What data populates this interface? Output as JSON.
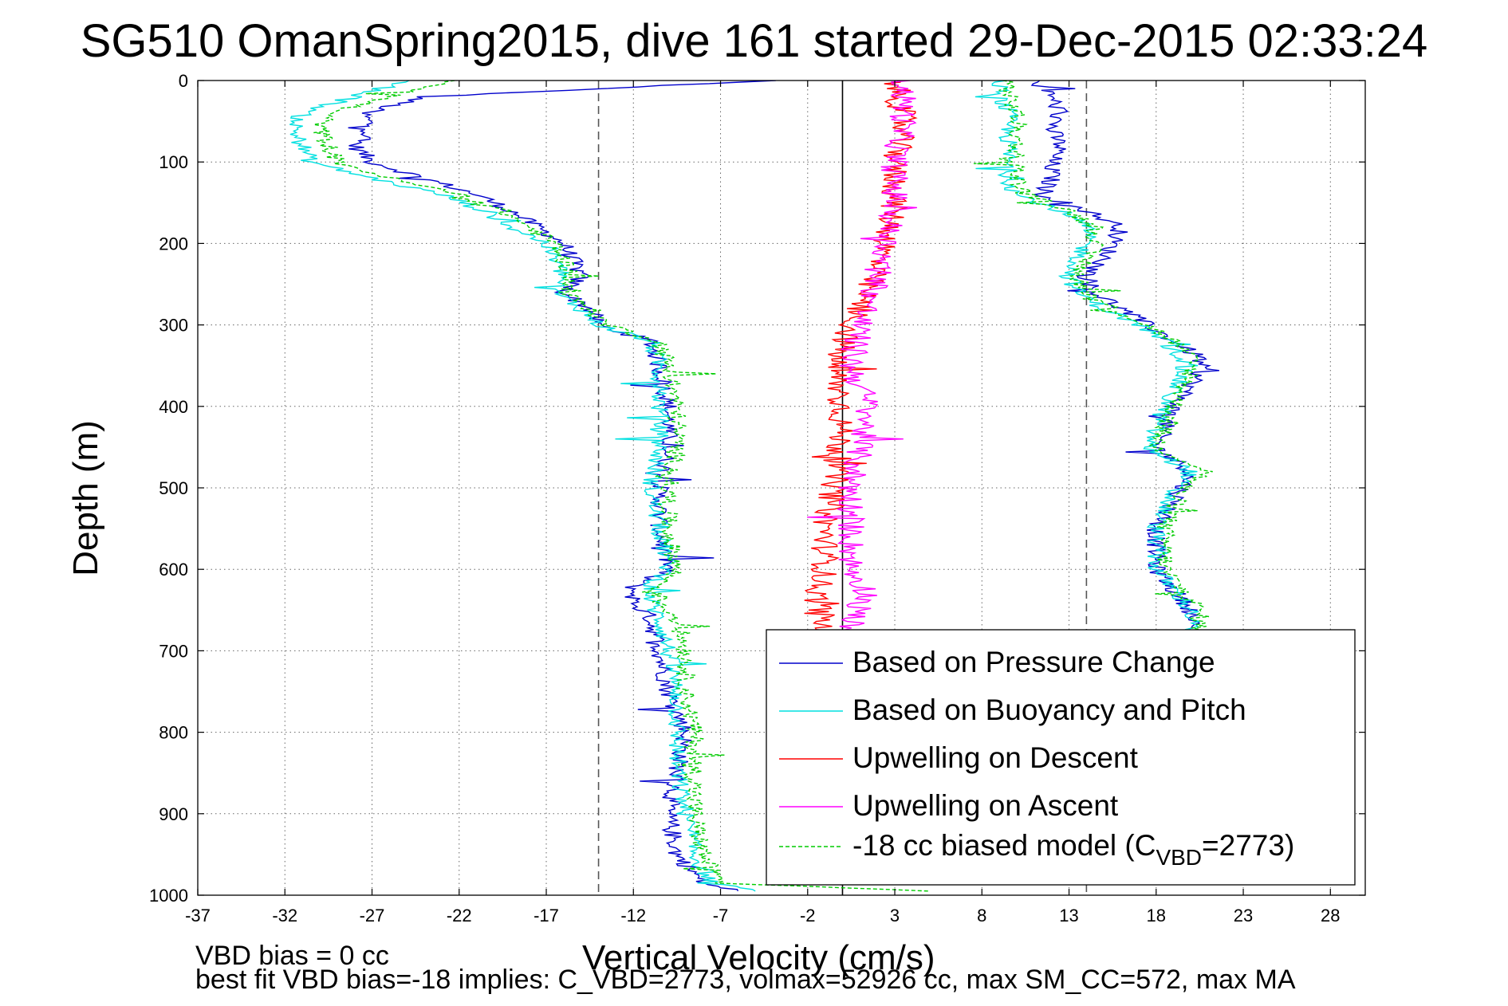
{
  "figure": {
    "title": "SG510 OmanSpring2015, dive 161 started 29-Dec-2015 02:33:24",
    "notes": [
      "VBD bias = 0 cc",
      "best fit VBD bias=-18 implies: C_VBD=2773, volmax=52926 cc, max SM_CC=572, max MA"
    ]
  },
  "chart_data": {
    "type": "line",
    "title": "SG510 OmanSpring2015, dive 161 started 29-Dec-2015 02:33:24",
    "xlabel": "Vertical Velocity (cm/s)",
    "ylabel": "Depth (m)",
    "xlim": [
      -37,
      30
    ],
    "ylim": [
      0,
      1000
    ],
    "y_reversed": true,
    "xticks": [
      -37,
      -32,
      -27,
      -22,
      -17,
      -12,
      -7,
      -2,
      3,
      8,
      13,
      18,
      23,
      28
    ],
    "yticks": [
      0,
      100,
      200,
      300,
      400,
      500,
      600,
      700,
      800,
      900,
      1000
    ],
    "grid": true,
    "legend_position": "bottom-right",
    "reference_lines": [
      {
        "x": -14,
        "style": "dashed",
        "color": "#555555"
      },
      {
        "x": 0,
        "style": "solid",
        "color": "#000000"
      },
      {
        "x": 14,
        "style": "dashed",
        "color": "#555555"
      }
    ],
    "series": [
      {
        "name": "Based on Pressure Change",
        "color": "#0000cc",
        "style": "solid",
        "profiles": [
          {
            "depth": [
              0,
              20,
              40,
              60,
              80,
              100,
              120,
              140,
              160,
              180,
              200,
              220,
              240,
              260,
              280,
              300,
              320,
              350,
              400,
              450,
              500,
              550,
              600,
              620,
              640,
              660,
              700,
              750,
              800,
              850,
              900,
              950,
              985,
              995
            ],
            "velocity": [
              -4,
              -24,
              -27.5,
              -27,
              -28,
              -27,
              -24,
              -21,
              -19,
              -17.5,
              -16,
              -15.5,
              -15,
              -16,
              -14.5,
              -14,
              -11,
              -10.5,
              -10,
              -10,
              -10.5,
              -10.5,
              -10,
              -12,
              -12,
              -11,
              -10.5,
              -10,
              -9,
              -9.5,
              -10,
              -9.5,
              -8,
              -6
            ]
          },
          {
            "depth": [
              0,
              20,
              40,
              60,
              80,
              100,
              120,
              140,
              160,
              180,
              200,
              220,
              240,
              260,
              280,
              300,
              320,
              340,
              360,
              400,
              450,
              480,
              500,
              550,
              600,
              650,
              690
            ],
            "velocity": [
              11,
              12,
              12.5,
              12,
              12.5,
              12,
              12,
              11.5,
              14,
              16,
              15.5,
              15,
              14,
              14.5,
              16,
              17.5,
              19,
              20.5,
              20.5,
              19,
              18,
              20,
              19.5,
              18,
              18,
              20,
              20
            ]
          }
        ]
      },
      {
        "name": "Based on Buoyancy and Pitch",
        "color": "#00e0e0",
        "style": "solid",
        "profiles": [
          {
            "depth": [
              0,
              20,
              40,
              60,
              80,
              100,
              120,
              140,
              160,
              180,
              200,
              220,
              240,
              260,
              280,
              300,
              320,
              350,
              400,
              450,
              500,
              550,
              600,
              620,
              640,
              660,
              700,
              750,
              800,
              850,
              900,
              950,
              985,
              995
            ],
            "velocity": [
              -25,
              -28,
              -31,
              -31.5,
              -31,
              -30.5,
              -27,
              -23,
              -20.5,
              -19,
              -17,
              -16.5,
              -16,
              -16.5,
              -15,
              -14,
              -11,
              -10.5,
              -10.5,
              -10.5,
              -11,
              -10.5,
              -10,
              -11,
              -11,
              -10.5,
              -10,
              -9.5,
              -9.5,
              -9.5,
              -9,
              -8.5,
              -7.5,
              -5
            ]
          },
          {
            "depth": [
              0,
              20,
              40,
              60,
              80,
              100,
              120,
              140,
              160,
              180,
              200,
              220,
              240,
              260,
              280,
              300,
              320,
              340,
              360,
              400,
              450,
              480,
              500,
              550,
              600,
              650,
              690
            ],
            "velocity": [
              9,
              9,
              9.5,
              9.5,
              9.5,
              9.5,
              9.5,
              10,
              12.5,
              14,
              14,
              13.5,
              13,
              13.5,
              15,
              17,
              18.5,
              19.5,
              19.5,
              18.5,
              17.5,
              20,
              19,
              18,
              18,
              20,
              20
            ]
          }
        ]
      },
      {
        "name": "Upwelling on Descent",
        "color": "#ff0000",
        "style": "solid",
        "profiles": [
          {
            "depth": [
              0,
              50,
              100,
              150,
              200,
              250,
              300,
              350,
              400,
              450,
              500,
              550,
              600,
              630,
              660,
              690
            ],
            "velocity": [
              3,
              3.5,
              3,
              3,
              2.5,
              1.5,
              0.5,
              -0.5,
              0,
              -0.2,
              -0.5,
              -1,
              -1,
              -1.5,
              -1.2,
              -1
            ]
          }
        ]
      },
      {
        "name": "Upwelling on Ascent",
        "color": "#ff00ff",
        "style": "solid",
        "profiles": [
          {
            "depth": [
              0,
              50,
              100,
              150,
              200,
              250,
              300,
              350,
              400,
              450,
              500,
              550,
              600,
              630,
              660,
              690
            ],
            "velocity": [
              3.5,
              3.5,
              3,
              3,
              2.5,
              2,
              1,
              0.5,
              1.5,
              1,
              0.5,
              0.5,
              0.5,
              1.5,
              0.5,
              0.5
            ]
          }
        ]
      },
      {
        "name": "-18 cc biased model (C",
        "name_subscript": "VBD",
        "name_suffix": "=2773)",
        "color": "#00cc00",
        "style": "dashed",
        "profiles": [
          {
            "depth": [
              0,
              20,
              40,
              60,
              80,
              100,
              120,
              140,
              160,
              180,
              200,
              220,
              240,
              260,
              280,
              300,
              320,
              350,
              400,
              450,
              500,
              550,
              600,
              620,
              640,
              660,
              700,
              750,
              800,
              850,
              900,
              950,
              985,
              995
            ],
            "velocity": [
              -22,
              -26,
              -29.5,
              -30,
              -29.5,
              -29,
              -26,
              -22,
              -19.5,
              -18,
              -16.5,
              -16,
              -15.5,
              -16,
              -14.5,
              -13.5,
              -10.5,
              -10,
              -9.5,
              -9.5,
              -10,
              -10,
              -9.5,
              -10.5,
              -10.5,
              -9.5,
              -9,
              -9,
              -8.5,
              -8.5,
              -8.5,
              -8,
              -7,
              5
            ]
          },
          {
            "depth": [
              0,
              20,
              40,
              60,
              80,
              100,
              120,
              140,
              160,
              180,
              200,
              220,
              240,
              260,
              280,
              300,
              320,
              340,
              360,
              400,
              450,
              480,
              500,
              550,
              600,
              650,
              690
            ],
            "velocity": [
              9.5,
              9.5,
              10,
              10,
              10,
              10,
              10,
              10.5,
              13,
              14.5,
              14.5,
              14,
              13.5,
              14,
              15.5,
              17.5,
              19,
              20,
              20,
              19,
              18,
              21,
              19.5,
              18.5,
              18.5,
              20.5,
              20.5
            ]
          }
        ]
      }
    ]
  }
}
